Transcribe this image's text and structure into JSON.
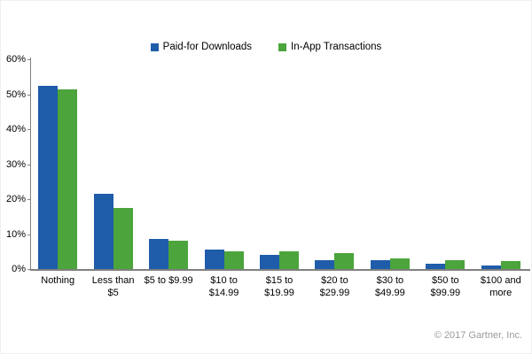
{
  "chart_data": {
    "type": "bar",
    "title": "",
    "categories": [
      "Nothing",
      "Less than\n$5",
      "$5 to $9.99",
      "$10 to\n$14.99",
      "$15 to\n$19.99",
      "$20 to\n$29.99",
      "$30 to\n$49.99",
      "$50 to\n$99.99",
      "$100 and\nmore"
    ],
    "series": [
      {
        "name": "Paid-for Downloads",
        "color": "#1F5CA9",
        "values": [
          52.5,
          21.5,
          8.5,
          5.5,
          4,
          2.5,
          2.5,
          1.5,
          1
        ]
      },
      {
        "name": "In-App Transactions",
        "color": "#4BA43C",
        "values": [
          51.5,
          17.5,
          8,
          5,
          5,
          4.5,
          3,
          2.5,
          2.2
        ]
      }
    ],
    "xlabel": "",
    "ylabel": "",
    "ylim": [
      0,
      60
    ],
    "ytick_step": 10,
    "ytick_labels": [
      "0%",
      "10%",
      "20%",
      "30%",
      "40%",
      "50%",
      "60%"
    ],
    "grid": false,
    "legend_position": "top-center",
    "axis_color": "#808080"
  },
  "footer": {
    "copyright": "© 2017 Gartner, Inc."
  }
}
